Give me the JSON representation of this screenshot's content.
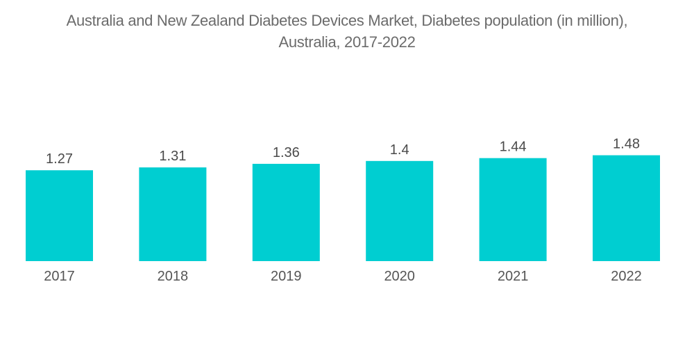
{
  "chart_data": {
    "type": "bar",
    "title": "Australia and New Zealand Diabetes Devices Market, Diabetes population (in million), Australia, 2017-2022",
    "title_lines": [
      "Australia and New Zealand Diabetes Devices Market, Diabetes population (in million),",
      "Australia, 2017-2022"
    ],
    "categories": [
      "2017",
      "2018",
      "2019",
      "2020",
      "2021",
      "2022"
    ],
    "values": [
      1.27,
      1.31,
      1.36,
      1.4,
      1.44,
      1.48
    ],
    "value_labels": [
      "1.27",
      "1.31",
      "1.36",
      "1.4",
      "1.44",
      "1.48"
    ],
    "xlabel": "",
    "ylabel": "",
    "ylim": [
      0,
      1.48
    ],
    "grid": false,
    "legend": "none",
    "bar_color": "#00CED1"
  }
}
